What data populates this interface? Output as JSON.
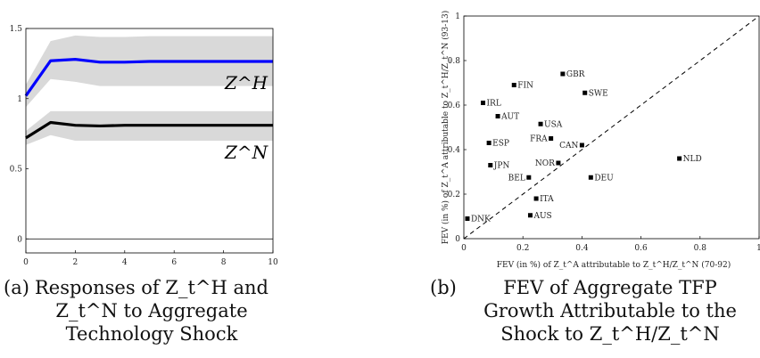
{
  "chart_data": [
    {
      "type": "line",
      "caption": {
        "label": "(a)",
        "lines": [
          "Responses of Z_t^H and",
          "Z_t^N to Aggregate",
          "Technology Shock"
        ]
      },
      "xlim": [
        0,
        10
      ],
      "ylim": [
        -0.1,
        1.5
      ],
      "xticks": [
        0,
        2,
        4,
        6,
        8,
        10
      ],
      "yticks": [
        0,
        0.5,
        1,
        1.5
      ],
      "xtick_labels": [
        "0",
        "2",
        "4",
        "6",
        "8",
        "10"
      ],
      "ytick_labels": [
        "0",
        "0.5",
        "1",
        "1.5"
      ],
      "x": [
        0,
        1,
        2,
        3,
        4,
        5,
        6,
        7,
        8,
        9,
        10
      ],
      "series": [
        {
          "name": "Z^H",
          "color": "#0000ff",
          "values": [
            1.02,
            1.27,
            1.28,
            1.26,
            1.26,
            1.265,
            1.265,
            1.265,
            1.265,
            1.265,
            1.265
          ],
          "upper": [
            1.1,
            1.41,
            1.45,
            1.44,
            1.44,
            1.445,
            1.445,
            1.445,
            1.445,
            1.445,
            1.445
          ],
          "lower": [
            0.94,
            1.14,
            1.12,
            1.09,
            1.09,
            1.09,
            1.09,
            1.09,
            1.09,
            1.09,
            1.09
          ]
        },
        {
          "name": "Z^N",
          "color": "#000000",
          "values": [
            0.72,
            0.83,
            0.81,
            0.805,
            0.81,
            0.81,
            0.81,
            0.81,
            0.81,
            0.81,
            0.81
          ],
          "upper": [
            0.77,
            0.91,
            0.91,
            0.91,
            0.91,
            0.91,
            0.91,
            0.91,
            0.91,
            0.91,
            0.91
          ],
          "lower": [
            0.67,
            0.74,
            0.7,
            0.7,
            0.7,
            0.7,
            0.7,
            0.7,
            0.7,
            0.7,
            0.7
          ]
        }
      ],
      "band_color": "#d9d9d9",
      "hline": 0
    },
    {
      "type": "scatter",
      "caption": {
        "label": "(b)",
        "lines": [
          "FEV of Aggregate TFP",
          "Growth Attributable to the",
          "Shock to Z_t^H/Z_t^N"
        ]
      },
      "xlabel": "FEV (in %) of Z_t^A attributable to Z_t^H/Z_t^N (70-92)",
      "ylabel": "FEV (in %) of Z_t^A attributable to Z_t^H/Z_t^N (93-13)",
      "xlim": [
        0,
        1
      ],
      "ylim": [
        0,
        1
      ],
      "xticks": [
        0,
        0.2,
        0.4,
        0.6,
        0.8,
        1
      ],
      "yticks": [
        0,
        0.2,
        0.4,
        0.6,
        0.8,
        1
      ],
      "xtick_labels": [
        "0",
        "0.2",
        "0.4",
        "0.6",
        "0.8",
        "1"
      ],
      "ytick_labels": [
        "0",
        "0.2",
        "0.4",
        "0.6",
        "0.8",
        "1"
      ],
      "diagonal": true,
      "points": [
        {
          "label": "GBR",
          "x": 0.335,
          "y": 0.74,
          "side": "right"
        },
        {
          "label": "FIN",
          "x": 0.17,
          "y": 0.69,
          "side": "right"
        },
        {
          "label": "SWE",
          "x": 0.41,
          "y": 0.655,
          "side": "right"
        },
        {
          "label": "IRL",
          "x": 0.065,
          "y": 0.61,
          "side": "right"
        },
        {
          "label": "AUT",
          "x": 0.115,
          "y": 0.55,
          "side": "right"
        },
        {
          "label": "USA",
          "x": 0.26,
          "y": 0.515,
          "side": "right"
        },
        {
          "label": "FRA",
          "x": 0.295,
          "y": 0.45,
          "side": "left"
        },
        {
          "label": "ESP",
          "x": 0.085,
          "y": 0.43,
          "side": "right"
        },
        {
          "label": "CAN",
          "x": 0.4,
          "y": 0.42,
          "side": "left"
        },
        {
          "label": "NLD",
          "x": 0.73,
          "y": 0.36,
          "side": "right"
        },
        {
          "label": "JPN",
          "x": 0.09,
          "y": 0.33,
          "side": "right"
        },
        {
          "label": "NOR",
          "x": 0.32,
          "y": 0.34,
          "side": "left"
        },
        {
          "label": "BEL",
          "x": 0.22,
          "y": 0.275,
          "side": "left"
        },
        {
          "label": "DEU",
          "x": 0.43,
          "y": 0.275,
          "side": "right"
        },
        {
          "label": "ITA",
          "x": 0.245,
          "y": 0.18,
          "side": "right"
        },
        {
          "label": "AUS",
          "x": 0.225,
          "y": 0.105,
          "side": "right"
        },
        {
          "label": "DNK",
          "x": 0.012,
          "y": 0.09,
          "side": "right"
        }
      ]
    }
  ]
}
